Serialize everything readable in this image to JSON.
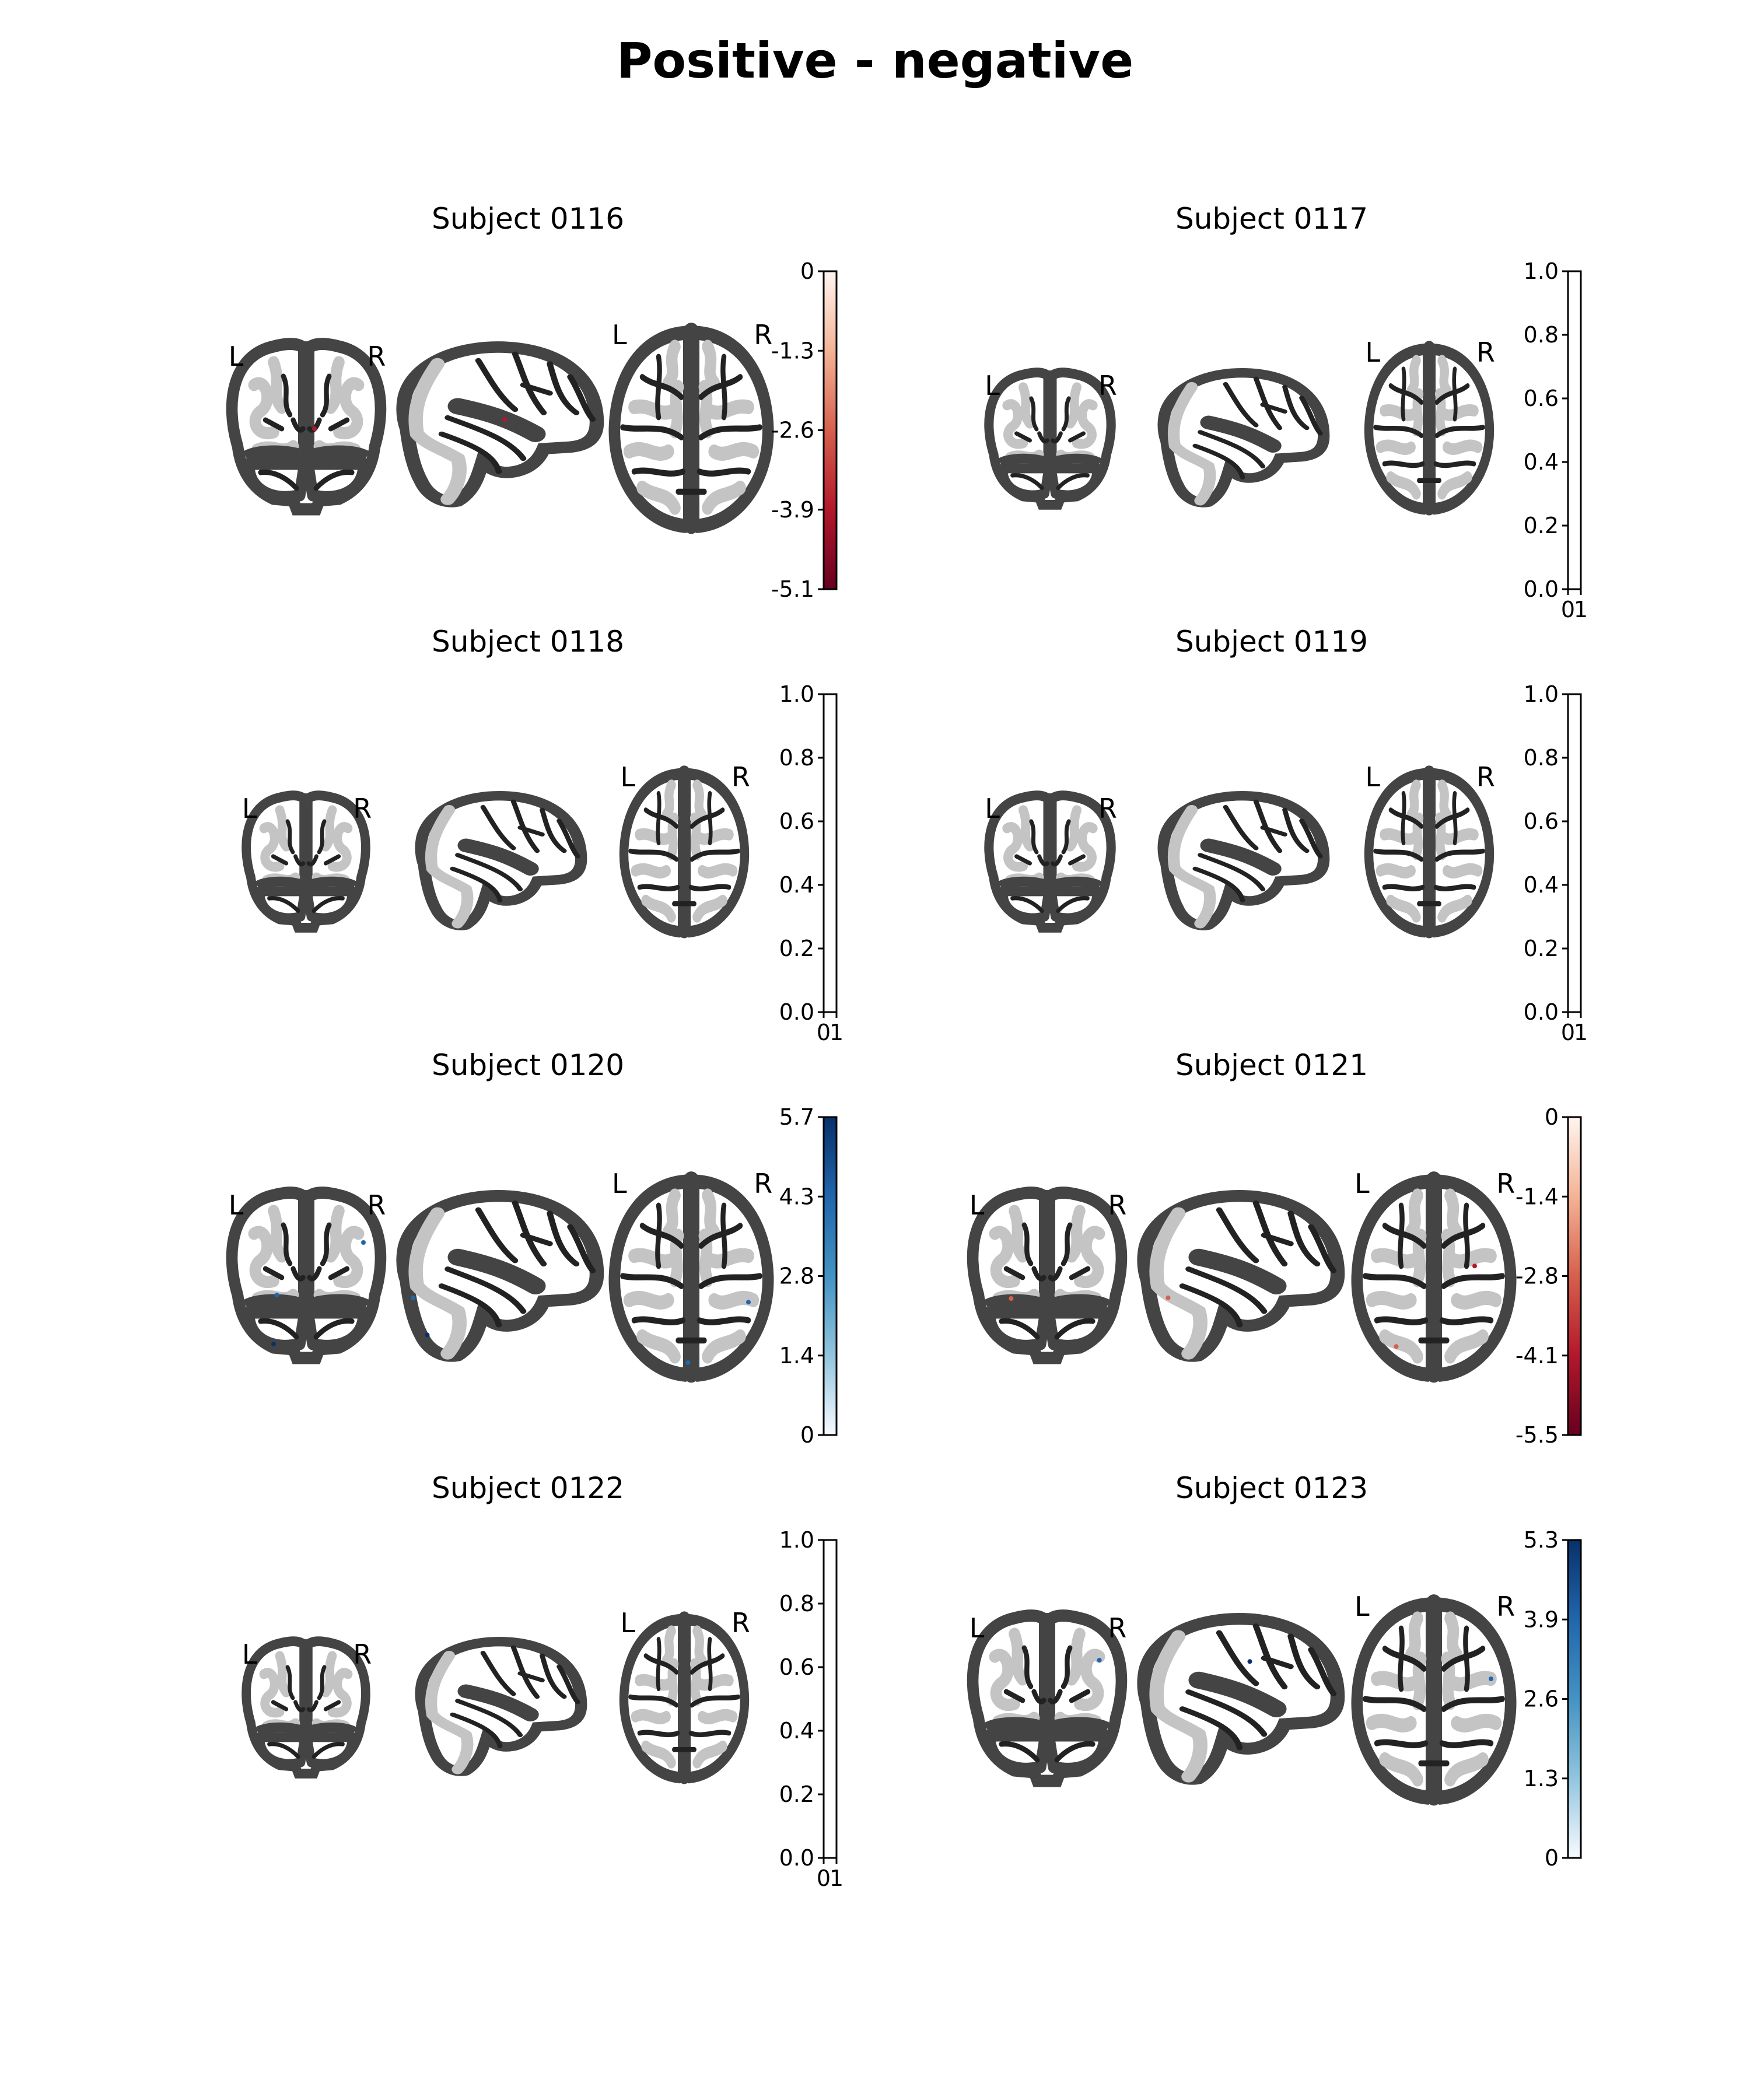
{
  "title": "Positive - negative",
  "orientation_labels": {
    "left": "L",
    "right": "R"
  },
  "panels": [
    {
      "title": "Subject 0116",
      "colorbar": {
        "ticks": [
          "0",
          "-1.3",
          "-2.6",
          "-3.9",
          "-5.1"
        ],
        "colors": [
          "#fff5f0",
          "#f4b396",
          "#d6604d",
          "#b2182b",
          "#67001f"
        ],
        "empty": false
      },
      "blobs": [
        {
          "view": "front",
          "fx": 0.55,
          "fy": 0.5,
          "color": "#b2182b"
        },
        {
          "view": "side",
          "fx": 0.53,
          "fy": 0.46,
          "color": "#b2182b"
        }
      ]
    },
    {
      "title": "Subject 0117",
      "colorbar": {
        "ticks": [
          "1.0",
          "0.8",
          "0.6",
          "0.4",
          "0.2",
          "0.0"
        ],
        "empty": true,
        "bottom_ticks": [
          "0",
          "1"
        ]
      },
      "blobs": []
    },
    {
      "title": "Subject 0118",
      "colorbar": {
        "ticks": [
          "1.0",
          "0.8",
          "0.6",
          "0.4",
          "0.2",
          "0.0"
        ],
        "empty": true,
        "bottom_ticks": [
          "0",
          "1"
        ]
      },
      "blobs": []
    },
    {
      "title": "Subject 0119",
      "colorbar": {
        "ticks": [
          "1.0",
          "0.8",
          "0.6",
          "0.4",
          "0.2",
          "0.0"
        ],
        "empty": true,
        "bottom_ticks": [
          "0",
          "1"
        ]
      },
      "blobs": []
    },
    {
      "title": "Subject 0120",
      "colorbar": {
        "ticks": [
          "5.7",
          "4.3",
          "2.8",
          "1.4",
          "0"
        ],
        "colors": [
          "#08306b",
          "#2166ac",
          "#4393c3",
          "#92c5de",
          "#f7fbff"
        ],
        "empty": false
      },
      "blobs": [
        {
          "view": "front",
          "fx": 0.85,
          "fy": 0.3,
          "color": "#2166ac"
        },
        {
          "view": "front",
          "fx": 0.32,
          "fy": 0.6,
          "color": "#2166ac"
        },
        {
          "view": "front",
          "fx": 0.3,
          "fy": 0.88,
          "color": "#08306b"
        },
        {
          "view": "side",
          "fx": 0.08,
          "fy": 0.62,
          "color": "#2166ac"
        },
        {
          "view": "side",
          "fx": 0.15,
          "fy": 0.84,
          "color": "#08306b"
        },
        {
          "view": "top",
          "fx": 0.85,
          "fy": 0.63,
          "color": "#2166ac"
        },
        {
          "view": "top",
          "fx": 0.48,
          "fy": 0.93,
          "color": "#2166ac"
        }
      ]
    },
    {
      "title": "Subject 0121",
      "colorbar": {
        "ticks": [
          "0",
          "-1.4",
          "-2.8",
          "-4.1",
          "-5.5"
        ],
        "colors": [
          "#fff5f0",
          "#f4b396",
          "#d6604d",
          "#b2182b",
          "#67001f"
        ],
        "empty": false
      },
      "blobs": [
        {
          "view": "front",
          "fx": 0.28,
          "fy": 0.62,
          "color": "#d6604d"
        },
        {
          "view": "side",
          "fx": 0.15,
          "fy": 0.62,
          "color": "#d6604d"
        },
        {
          "view": "top",
          "fx": 0.75,
          "fy": 0.45,
          "color": "#b2182b"
        },
        {
          "view": "top",
          "fx": 0.27,
          "fy": 0.85,
          "color": "#d6604d"
        }
      ]
    },
    {
      "title": "Subject 0122",
      "colorbar": {
        "ticks": [
          "1.0",
          "0.8",
          "0.6",
          "0.4",
          "0.2",
          "0.0"
        ],
        "empty": true,
        "bottom_ticks": [
          "0",
          "1"
        ]
      },
      "blobs": []
    },
    {
      "title": "Subject 0123",
      "colorbar": {
        "ticks": [
          "5.3",
          "3.9",
          "2.6",
          "1.3",
          "0"
        ],
        "colors": [
          "#08306b",
          "#2166ac",
          "#4393c3",
          "#92c5de",
          "#f7fbff"
        ],
        "empty": false
      },
      "blobs": [
        {
          "view": "front",
          "fx": 0.82,
          "fy": 0.27,
          "color": "#2166ac"
        },
        {
          "view": "side",
          "fx": 0.55,
          "fy": 0.27,
          "color": "#08306b"
        },
        {
          "view": "top",
          "fx": 0.85,
          "fy": 0.4,
          "color": "#2166ac"
        }
      ]
    }
  ]
}
